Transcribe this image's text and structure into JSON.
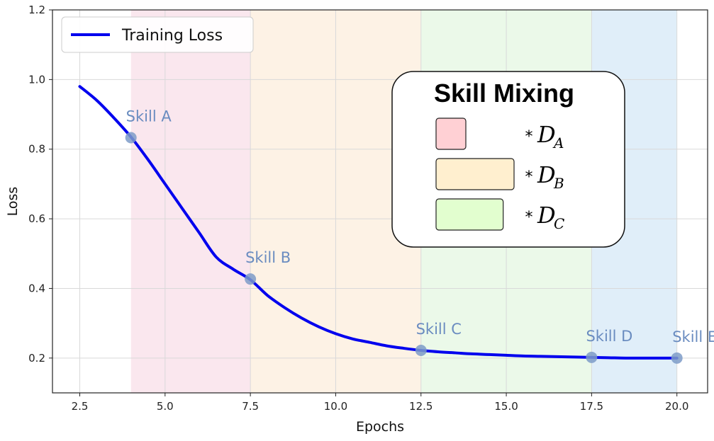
{
  "chart_data": {
    "type": "line",
    "xlabel": "Epochs",
    "ylabel": "Loss",
    "xlim": [
      1.7,
      20.9
    ],
    "ylim": [
      0.1,
      1.2
    ],
    "xticks": [
      2.5,
      5.0,
      7.5,
      10.0,
      12.5,
      15.0,
      17.5,
      20.0
    ],
    "xtick_labels": [
      "2.5",
      "5.0",
      "7.5",
      "10.0",
      "12.5",
      "15.0",
      "17.5",
      "20.0"
    ],
    "yticks": [
      0.2,
      0.4,
      0.6,
      0.8,
      1.0,
      1.2
    ],
    "ytick_labels": [
      "0.2",
      "0.4",
      "0.6",
      "0.8",
      "1.0",
      "1.2"
    ],
    "grid": true,
    "legend_position": "top-left",
    "series": [
      {
        "name": "Training Loss",
        "color": "#0000ee",
        "x": [
          2.5,
          3.0,
          3.5,
          4.0,
          4.5,
          5.0,
          5.5,
          6.0,
          6.5,
          7.0,
          7.5,
          8.0,
          8.5,
          9.0,
          9.5,
          10.0,
          10.5,
          11.0,
          11.5,
          12.0,
          12.5,
          13.0,
          13.5,
          14.0,
          14.5,
          15.0,
          15.5,
          16.0,
          16.5,
          17.0,
          17.5,
          18.0,
          18.5,
          19.0,
          19.5,
          20.0
        ],
        "y": [
          0.98,
          0.94,
          0.89,
          0.835,
          0.77,
          0.7,
          0.63,
          0.56,
          0.49,
          0.455,
          0.425,
          0.38,
          0.345,
          0.315,
          0.29,
          0.27,
          0.255,
          0.245,
          0.235,
          0.228,
          0.222,
          0.218,
          0.215,
          0.212,
          0.21,
          0.208,
          0.206,
          0.205,
          0.204,
          0.203,
          0.202,
          0.201,
          0.2,
          0.2,
          0.2,
          0.2
        ]
      }
    ],
    "points": [
      {
        "label": "Skill A",
        "x": 4.0,
        "y": 0.833
      },
      {
        "label": "Skill B",
        "x": 7.5,
        "y": 0.427
      },
      {
        "label": "Skill C",
        "x": 12.5,
        "y": 0.222
      },
      {
        "label": "Skill D",
        "x": 17.5,
        "y": 0.202
      },
      {
        "label": "Skill E",
        "x": 20.0,
        "y": 0.2
      }
    ],
    "point_color": "#7d9bc8",
    "regions": [
      {
        "from": 4.0,
        "to": 7.5,
        "color": "#f7d7e3"
      },
      {
        "from": 7.5,
        "to": 12.5,
        "color": "#fbe9d4"
      },
      {
        "from": 12.5,
        "to": 17.5,
        "color": "#def5db"
      },
      {
        "from": 17.5,
        "to": 20.0,
        "color": "#cce3f5"
      }
    ],
    "skill_mixing": {
      "title": "Skill Mixing",
      "items": [
        {
          "star": "*",
          "symbol": "D",
          "subscript": "A",
          "color": "#ffd0d4",
          "weight": 0.2
        },
        {
          "star": "*",
          "symbol": "D",
          "subscript": "B",
          "color": "#ffefcf",
          "weight": 1.0
        },
        {
          "star": "*",
          "symbol": "D",
          "subscript": "C",
          "color": "#e2fecf",
          "weight": 0.82
        }
      ]
    }
  }
}
